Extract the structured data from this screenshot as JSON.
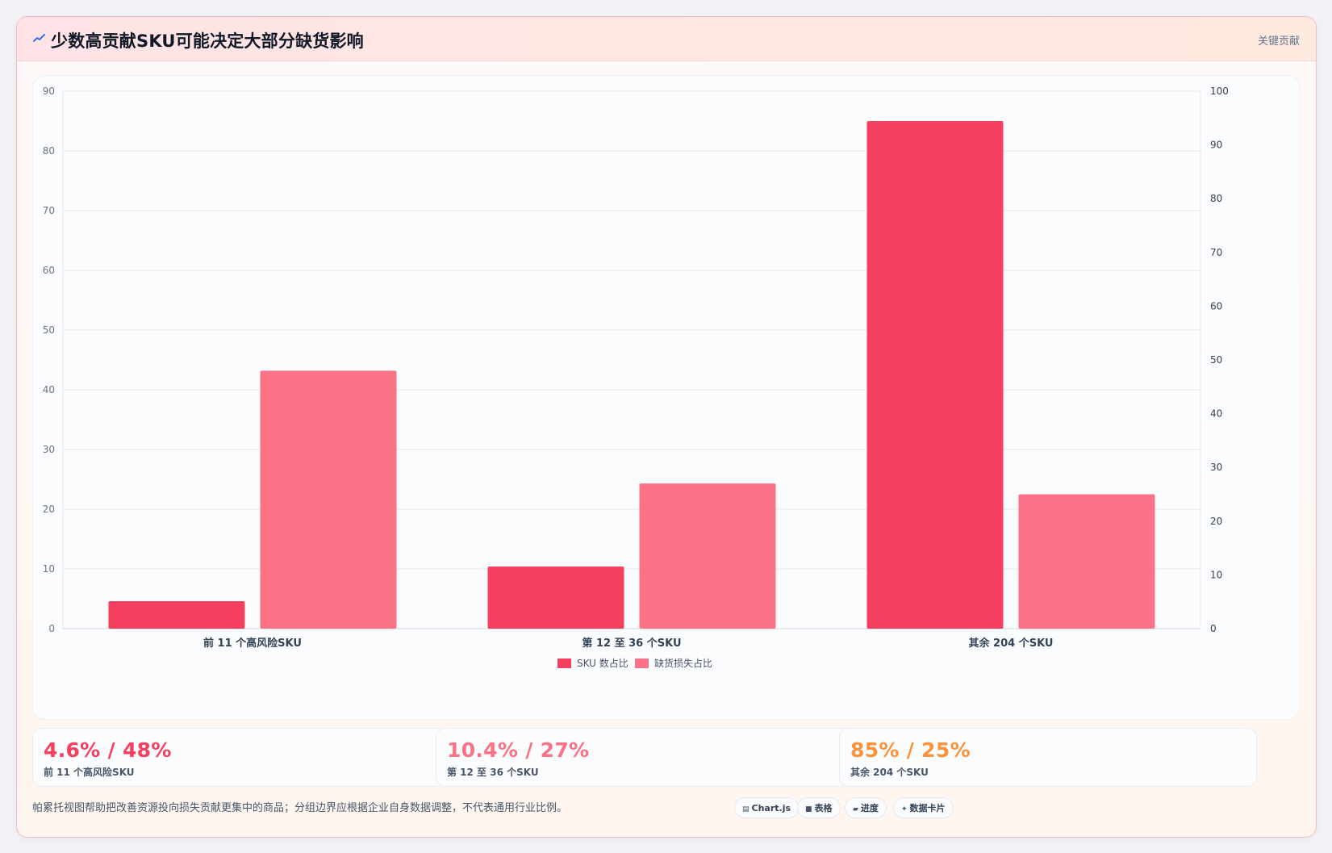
{
  "header": {
    "title": "少数高贡献SKU可能决定大部分缺货影响",
    "tag": "关键贡献",
    "icon": "trend-line-icon"
  },
  "colors": {
    "series_sku": "#f43f5e",
    "series_loss": "#fb7185",
    "accent_red": "#f43f5e",
    "accent_pink": "#fb7185",
    "accent_orange": "#fb923c"
  },
  "chart_data": {
    "type": "bar",
    "categories": [
      "前 11 个高风险SKU",
      "第 12 至 36 个SKU",
      "其余 204 个SKU"
    ],
    "series": [
      {
        "name": "SKU 数占比",
        "values": [
          4.6,
          10.4,
          85
        ],
        "axis": "left"
      },
      {
        "name": "缺货损失占比",
        "values": [
          48,
          27,
          25
        ],
        "axis": "right"
      }
    ],
    "ylim_left": [
      0,
      90
    ],
    "yticks_left": [
      0,
      10,
      20,
      30,
      40,
      50,
      60,
      70,
      80,
      90
    ],
    "ylim_right": [
      0,
      100
    ],
    "yticks_right": [
      0,
      10,
      20,
      30,
      40,
      50,
      60,
      70,
      80,
      90,
      100
    ],
    "grid": true,
    "legend": "bottom-center"
  },
  "stats": [
    {
      "value": "4.6% / 48%",
      "label": "前 11 个高风险SKU"
    },
    {
      "value": "10.4% / 27%",
      "label": "第 12 至 36 个SKU"
    },
    {
      "value": "85% / 25%",
      "label": "其余 204 个SKU"
    }
  ],
  "footer": {
    "note": "帕累托视图帮助把改善资源投向损失贡献更集中的商品；分组边界应根据企业自身数据调整，不代表通用行业比例。"
  },
  "chips": [
    {
      "icon": "▤",
      "label": "Chart.js"
    },
    {
      "icon": "■",
      "label": "表格"
    },
    {
      "icon": "▰",
      "label": "进度"
    },
    {
      "icon": "✦",
      "label": "数据卡片"
    }
  ]
}
